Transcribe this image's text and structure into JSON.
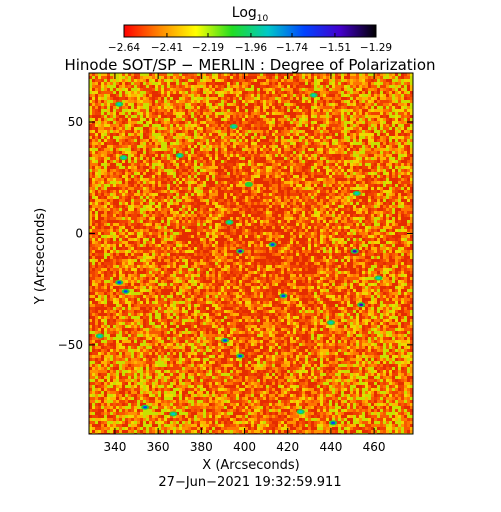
{
  "chart_data": {
    "type": "heatmap",
    "title": "Hinode SOT/SP − MERLIN : Degree of Polarization",
    "xlabel": "X (Arcseconds)",
    "ylabel": "Y (Arcseconds)",
    "timestamp": "27−Jun−2021 19:32:59.911",
    "xlim": [
      328,
      478
    ],
    "ylim": [
      -90,
      72
    ],
    "x_ticks": [
      340,
      360,
      380,
      400,
      420,
      440,
      460
    ],
    "x_tick_labels": [
      "340",
      "360",
      "380",
      "400",
      "420",
      "440",
      "460"
    ],
    "y_ticks": [
      50,
      0,
      -50
    ],
    "y_tick_labels": [
      "50",
      "0",
      "−50"
    ],
    "colorbar": {
      "label": "Log",
      "label_sub": "10",
      "vmin": -2.64,
      "vmax": -1.29,
      "ticks": [
        -2.64,
        -2.41,
        -2.19,
        -1.96,
        -1.74,
        -1.51,
        -1.29
      ],
      "tick_labels": [
        "−2.64",
        "−2.41",
        "−2.19",
        "−1.96",
        "−1.74",
        "−1.51",
        "−1.29"
      ],
      "colors": [
        "#ff0000",
        "#ff8800",
        "#ffff00",
        "#22dd22",
        "#00c8c8",
        "#0044ff",
        "#4400cc",
        "#000000"
      ]
    },
    "field_colors": [
      "#e52c00",
      "#f04000",
      "#f85800",
      "#ff7400",
      "#ff9200",
      "#ffb400",
      "#f0d800",
      "#c8e000"
    ],
    "spots": [
      {
        "x": 342,
        "y": 58,
        "v": -1.85
      },
      {
        "x": 395,
        "y": 48,
        "v": -1.95
      },
      {
        "x": 432,
        "y": 62,
        "v": -1.8
      },
      {
        "x": 344,
        "y": 34,
        "v": -1.9
      },
      {
        "x": 393,
        "y": 5,
        "v": -1.9
      },
      {
        "x": 398,
        "y": -8,
        "v": -1.5
      },
      {
        "x": 413,
        "y": -5,
        "v": -1.6
      },
      {
        "x": 451,
        "y": -8,
        "v": -1.5
      },
      {
        "x": 342,
        "y": -22,
        "v": -1.7
      },
      {
        "x": 345,
        "y": -26,
        "v": -1.6
      },
      {
        "x": 418,
        "y": -28,
        "v": -1.7
      },
      {
        "x": 454,
        "y": -32,
        "v": -1.5
      },
      {
        "x": 440,
        "y": -40,
        "v": -1.9
      },
      {
        "x": 391,
        "y": -48,
        "v": -1.6
      },
      {
        "x": 398,
        "y": -55,
        "v": -1.7
      },
      {
        "x": 333,
        "y": -46,
        "v": -1.8
      },
      {
        "x": 354,
        "y": -78,
        "v": -1.7
      },
      {
        "x": 426,
        "y": -80,
        "v": -1.8
      },
      {
        "x": 441,
        "y": -85,
        "v": -1.6
      },
      {
        "x": 367,
        "y": -81,
        "v": -1.9
      },
      {
        "x": 452,
        "y": 18,
        "v": -1.9
      },
      {
        "x": 370,
        "y": 35,
        "v": -1.95
      },
      {
        "x": 402,
        "y": 22,
        "v": -2.0
      },
      {
        "x": 462,
        "y": -20,
        "v": -1.9
      }
    ]
  }
}
